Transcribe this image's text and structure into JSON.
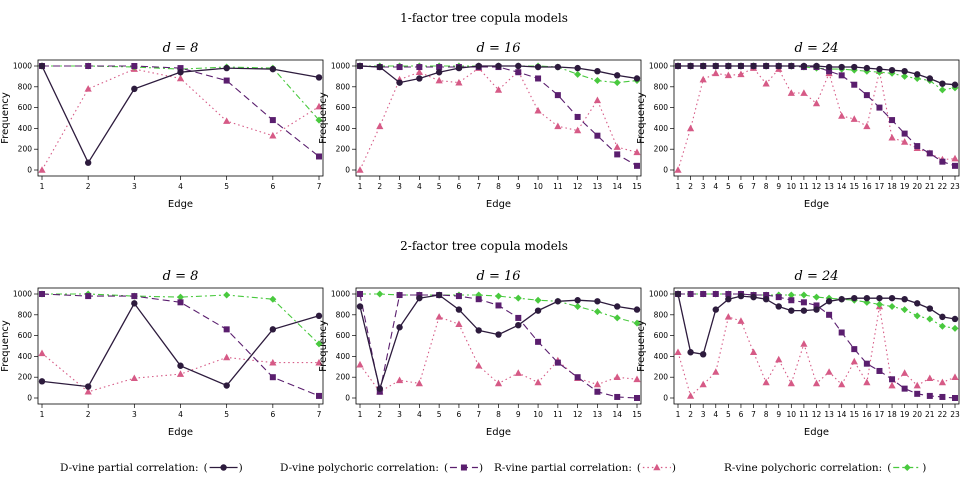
{
  "rows": [
    {
      "title": "1-factor tree copula models"
    },
    {
      "title": "2-factor tree copula models"
    }
  ],
  "legend": [
    {
      "label": "D-vine partial correlation:",
      "series": "dvp"
    },
    {
      "label": "D-vine polychoric correlation:",
      "series": "dvc"
    },
    {
      "label": "R-vine partial correlation:",
      "series": "rvp"
    },
    {
      "label": "R-vine polychoric correlation:",
      "series": "rvc"
    }
  ],
  "styles": {
    "dvp": {
      "color": "#2d1b3d",
      "dash": "",
      "marker": "circle"
    },
    "dvc": {
      "color": "#5a1e6e",
      "dash": "7,4",
      "marker": "square"
    },
    "rvp": {
      "color": "#d65a86",
      "dash": "1.5,3",
      "marker": "triangle"
    },
    "rvc": {
      "color": "#49c93e",
      "dash": "6,3,2,3",
      "marker": "diamond"
    }
  },
  "chart_data": [
    {
      "type": "line",
      "row": 0,
      "col": 0,
      "title": "d = 8",
      "xlabel": "Edge",
      "ylabel": "Frequency",
      "ylim": [
        0,
        1000
      ],
      "yticks": [
        0,
        200,
        400,
        600,
        800,
        1000
      ],
      "x": [
        1,
        2,
        3,
        4,
        5,
        6,
        7
      ],
      "series": [
        {
          "id": "dvp",
          "name": "D-vine partial correlation",
          "values": [
            1000,
            70,
            780,
            940,
            980,
            970,
            890
          ]
        },
        {
          "id": "dvc",
          "name": "D-vine polychoric correlation",
          "values": [
            1000,
            1000,
            1000,
            980,
            860,
            480,
            130
          ]
        },
        {
          "id": "rvp",
          "name": "R-vine partial correlation",
          "values": [
            0,
            780,
            970,
            880,
            470,
            330,
            610
          ]
        },
        {
          "id": "rvc",
          "name": "R-vine polychoric correlation",
          "values": [
            1000,
            1000,
            990,
            970,
            990,
            980,
            480
          ]
        }
      ]
    },
    {
      "type": "line",
      "row": 0,
      "col": 1,
      "title": "d = 16",
      "xlabel": "Edge",
      "ylabel": "Frequency",
      "ylim": [
        0,
        1000
      ],
      "yticks": [
        0,
        200,
        400,
        600,
        800,
        1000
      ],
      "x": [
        1,
        2,
        3,
        4,
        5,
        6,
        7,
        8,
        9,
        10,
        11,
        12,
        13,
        14,
        15
      ],
      "series": [
        {
          "id": "dvp",
          "name": "D-vine partial correlation",
          "values": [
            1000,
            990,
            840,
            880,
            940,
            980,
            1000,
            1000,
            1000,
            990,
            990,
            980,
            950,
            910,
            880
          ]
        },
        {
          "id": "dvc",
          "name": "D-vine polychoric correlation",
          "values": [
            1000,
            990,
            990,
            990,
            990,
            990,
            990,
            990,
            940,
            880,
            720,
            510,
            330,
            150,
            40
          ]
        },
        {
          "id": "rvp",
          "name": "R-vine partial correlation",
          "values": [
            0,
            420,
            870,
            940,
            860,
            840,
            980,
            770,
            950,
            570,
            420,
            380,
            670,
            220,
            170
          ]
        },
        {
          "id": "rvc",
          "name": "R-vine polychoric correlation",
          "values": [
            1000,
            1000,
            1000,
            1000,
            1000,
            1000,
            1000,
            1000,
            1000,
            1000,
            990,
            920,
            860,
            840,
            860
          ]
        }
      ]
    },
    {
      "type": "line",
      "row": 0,
      "col": 2,
      "title": "d = 24",
      "xlabel": "Edge",
      "ylabel": "Frequency",
      "ylim": [
        0,
        1000
      ],
      "yticks": [
        0,
        200,
        400,
        600,
        800,
        1000
      ],
      "x": [
        1,
        2,
        3,
        4,
        5,
        6,
        7,
        8,
        9,
        10,
        11,
        12,
        13,
        14,
        15,
        16,
        17,
        18,
        19,
        20,
        21,
        22,
        23
      ],
      "series": [
        {
          "id": "dvp",
          "name": "D-vine partial correlation",
          "values": [
            1000,
            1000,
            1000,
            1000,
            1000,
            1000,
            1000,
            1000,
            1000,
            1000,
            1000,
            1000,
            990,
            990,
            990,
            980,
            970,
            960,
            950,
            920,
            880,
            830,
            820
          ]
        },
        {
          "id": "dvc",
          "name": "D-vine polychoric correlation",
          "values": [
            1000,
            1000,
            1000,
            1000,
            1000,
            1000,
            1000,
            1000,
            1000,
            1000,
            990,
            990,
            950,
            910,
            820,
            720,
            600,
            480,
            350,
            230,
            160,
            80,
            40
          ]
        },
        {
          "id": "rvp",
          "name": "R-vine partial correlation",
          "values": [
            0,
            400,
            870,
            930,
            910,
            920,
            980,
            830,
            970,
            740,
            740,
            640,
            930,
            520,
            490,
            420,
            950,
            310,
            270,
            210,
            160,
            100,
            110
          ]
        },
        {
          "id": "rvc",
          "name": "R-vine polychoric correlation",
          "values": [
            1000,
            1000,
            1000,
            1000,
            1000,
            1000,
            1000,
            1000,
            1000,
            1000,
            990,
            980,
            970,
            970,
            960,
            950,
            940,
            930,
            900,
            880,
            860,
            770,
            790
          ]
        }
      ]
    },
    {
      "type": "line",
      "row": 1,
      "col": 0,
      "title": "d = 8",
      "xlabel": "Edge",
      "ylabel": "Frequency",
      "ylim": [
        0,
        1000
      ],
      "yticks": [
        0,
        200,
        400,
        600,
        800,
        1000
      ],
      "x": [
        1,
        2,
        3,
        4,
        5,
        6,
        7
      ],
      "series": [
        {
          "id": "dvp",
          "name": "D-vine partial correlation",
          "values": [
            160,
            110,
            910,
            310,
            120,
            660,
            790
          ]
        },
        {
          "id": "dvc",
          "name": "D-vine polychoric correlation",
          "values": [
            1000,
            980,
            980,
            920,
            660,
            200,
            20
          ]
        },
        {
          "id": "rvp",
          "name": "R-vine partial correlation",
          "values": [
            430,
            60,
            190,
            230,
            390,
            340,
            340
          ]
        },
        {
          "id": "rvc",
          "name": "R-vine polychoric correlation",
          "values": [
            1000,
            1000,
            980,
            970,
            990,
            950,
            520
          ]
        }
      ]
    },
    {
      "type": "line",
      "row": 1,
      "col": 1,
      "title": "d = 16",
      "xlabel": "Edge",
      "ylabel": "Frequency",
      "ylim": [
        0,
        1000
      ],
      "yticks": [
        0,
        200,
        400,
        600,
        800,
        1000
      ],
      "x": [
        1,
        2,
        3,
        4,
        5,
        6,
        7,
        8,
        9,
        10,
        11,
        12,
        13,
        14,
        15
      ],
      "series": [
        {
          "id": "dvp",
          "name": "D-vine partial correlation",
          "values": [
            880,
            90,
            680,
            960,
            990,
            850,
            650,
            610,
            700,
            840,
            930,
            940,
            930,
            880,
            850
          ]
        },
        {
          "id": "dvc",
          "name": "D-vine polychoric correlation",
          "values": [
            1000,
            60,
            990,
            990,
            990,
            980,
            950,
            890,
            770,
            540,
            340,
            200,
            60,
            10,
            0
          ]
        },
        {
          "id": "rvp",
          "name": "R-vine partial correlation",
          "values": [
            320,
            60,
            170,
            140,
            780,
            710,
            310,
            140,
            240,
            150,
            360,
            190,
            130,
            200,
            180
          ]
        },
        {
          "id": "rvc",
          "name": "R-vine polychoric correlation",
          "values": [
            1000,
            1000,
            990,
            990,
            990,
            990,
            990,
            980,
            960,
            940,
            930,
            880,
            830,
            770,
            720
          ]
        }
      ]
    },
    {
      "type": "line",
      "row": 1,
      "col": 2,
      "title": "d = 24",
      "xlabel": "Edge",
      "ylabel": "Frequency",
      "ylim": [
        0,
        1000
      ],
      "yticks": [
        0,
        200,
        400,
        600,
        800,
        1000
      ],
      "x": [
        1,
        2,
        3,
        4,
        5,
        6,
        7,
        8,
        9,
        10,
        11,
        12,
        13,
        14,
        15,
        16,
        17,
        18,
        19,
        20,
        21,
        22,
        23
      ],
      "series": [
        {
          "id": "dvp",
          "name": "D-vine partial correlation",
          "values": [
            1000,
            440,
            420,
            850,
            950,
            980,
            970,
            950,
            880,
            840,
            840,
            850,
            930,
            950,
            960,
            960,
            960,
            960,
            950,
            910,
            860,
            780,
            760
          ]
        },
        {
          "id": "dvc",
          "name": "D-vine polychoric correlation",
          "values": [
            1000,
            1000,
            1000,
            1000,
            1000,
            1000,
            990,
            990,
            970,
            940,
            920,
            890,
            800,
            630,
            470,
            330,
            260,
            180,
            90,
            40,
            20,
            10,
            0
          ]
        },
        {
          "id": "rvp",
          "name": "R-vine partial correlation",
          "values": [
            440,
            20,
            130,
            250,
            780,
            740,
            440,
            150,
            370,
            140,
            520,
            140,
            250,
            130,
            350,
            150,
            880,
            120,
            240,
            120,
            190,
            150,
            200
          ]
        },
        {
          "id": "rvc",
          "name": "R-vine polychoric correlation",
          "values": [
            1000,
            1000,
            1000,
            1000,
            1000,
            1000,
            990,
            990,
            990,
            990,
            990,
            970,
            960,
            950,
            940,
            920,
            900,
            880,
            850,
            790,
            760,
            690,
            670
          ]
        }
      ]
    }
  ]
}
